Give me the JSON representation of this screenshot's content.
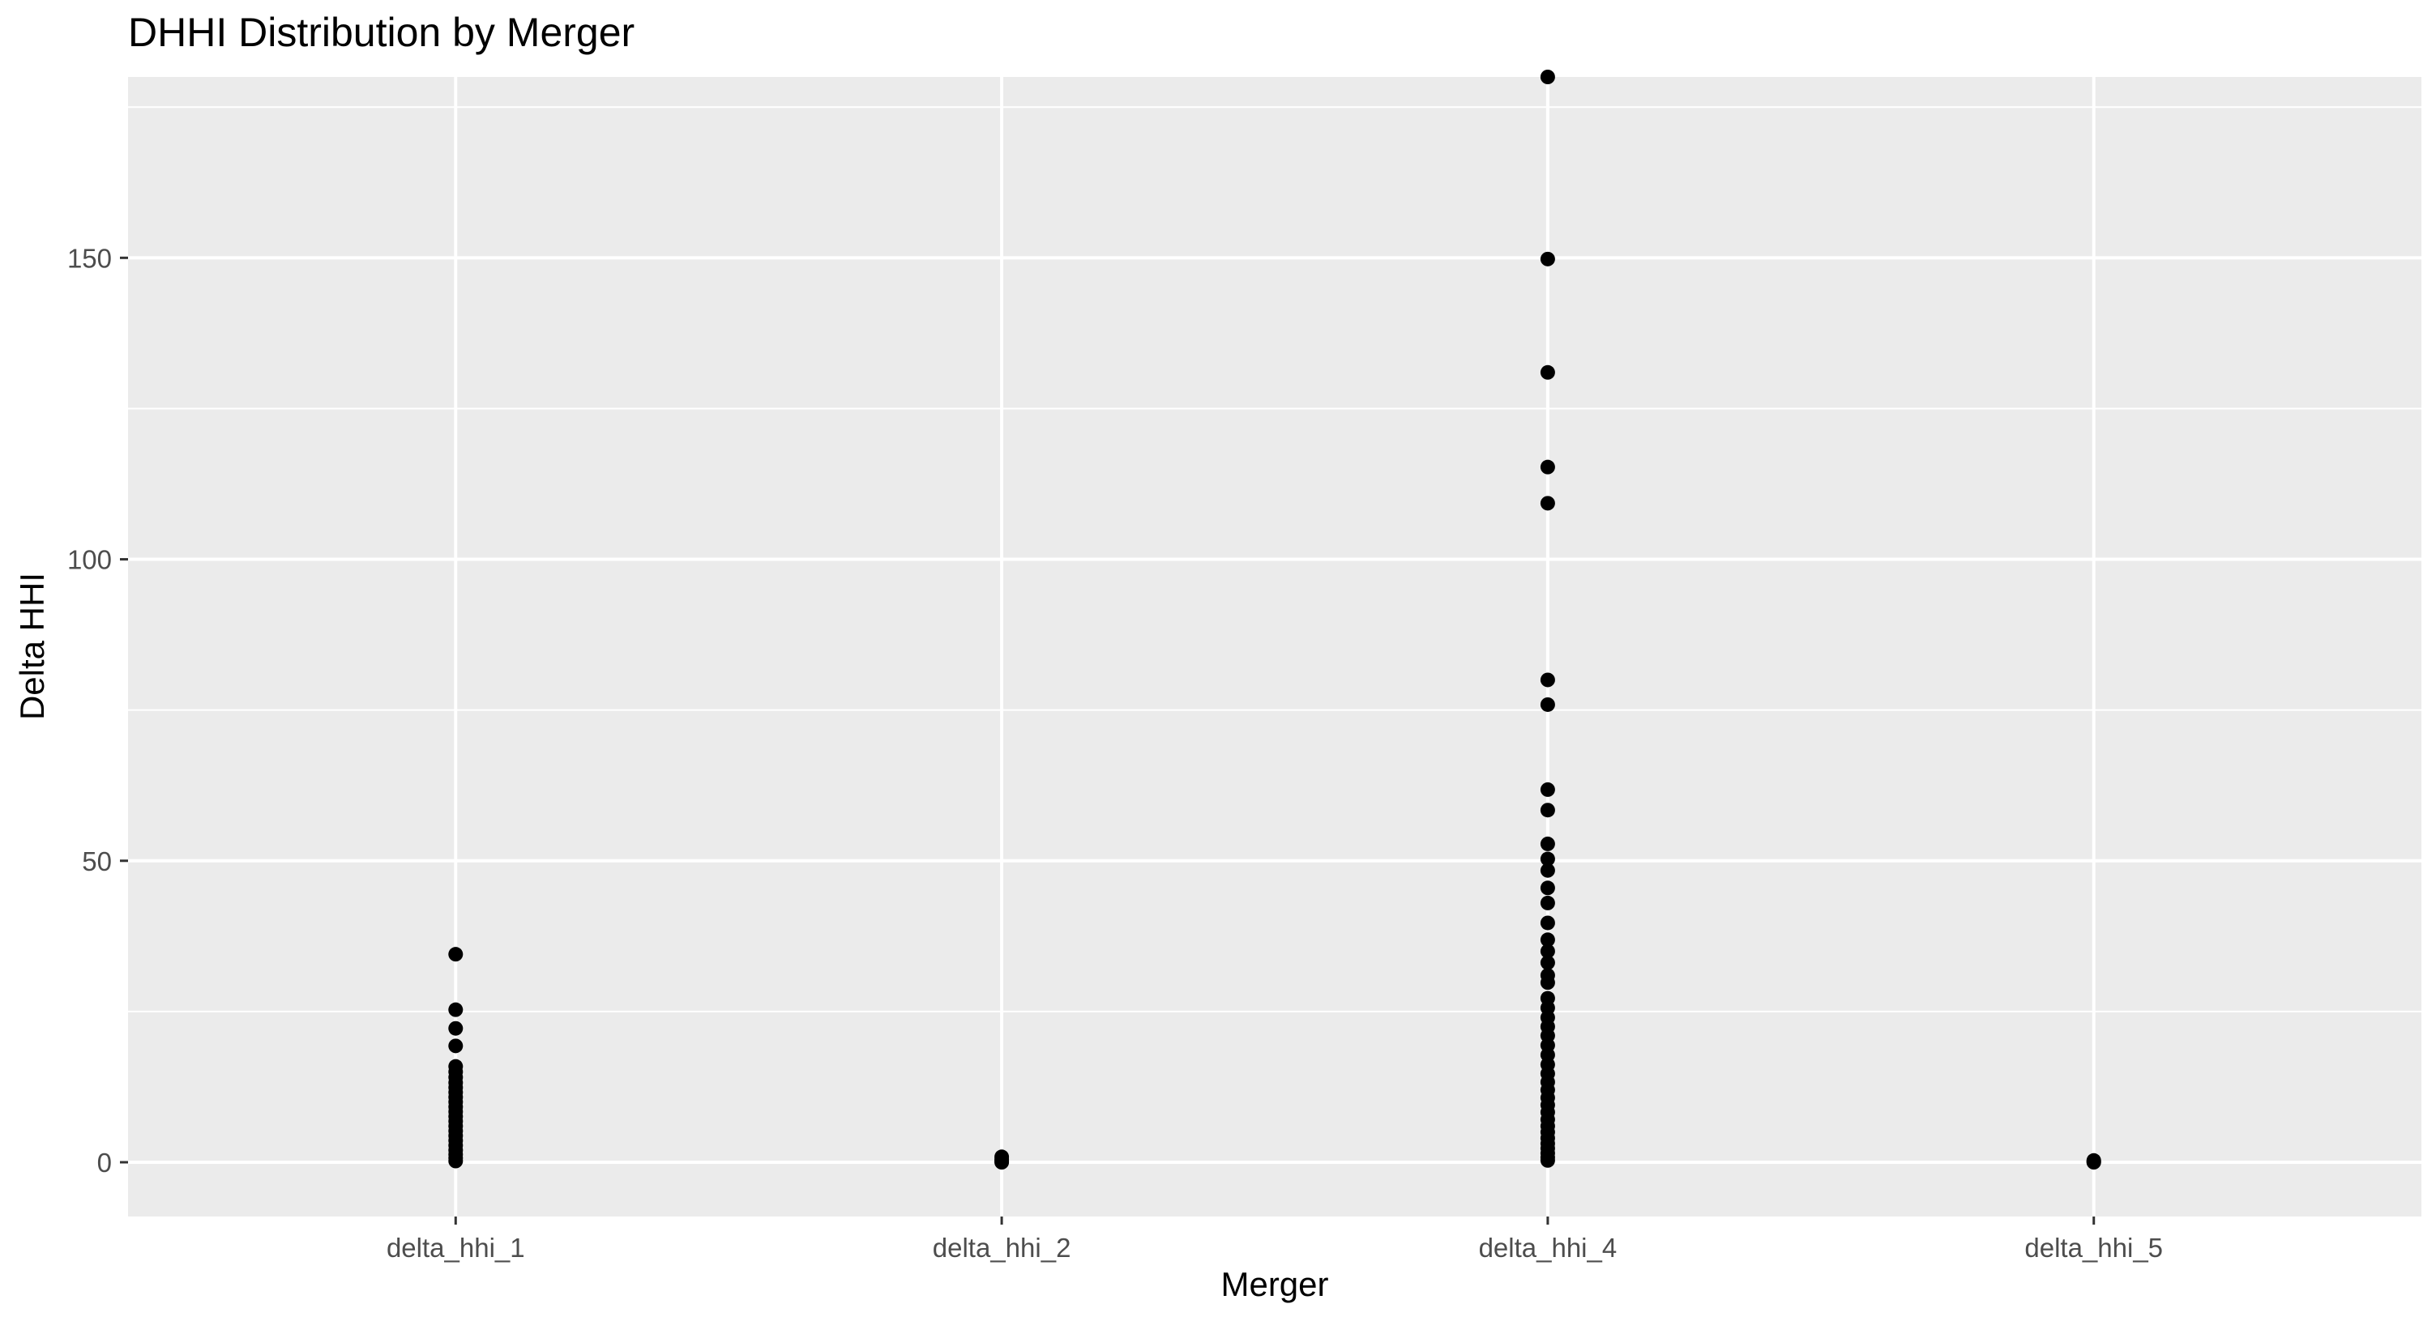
{
  "chart_data": {
    "type": "scatter",
    "title": "DHHI Distribution by Merger",
    "xlabel": "Merger",
    "ylabel": "Delta HHI",
    "categories": [
      "delta_hhi_1",
      "delta_hhi_2",
      "delta_hhi_4",
      "delta_hhi_5"
    ],
    "yticks": [
      0,
      50,
      100,
      150
    ],
    "ylim": [
      -9,
      180
    ],
    "grid": true,
    "legend": "none",
    "colors": {
      "panel": "#ebebeb",
      "grid": "#ffffff",
      "point": "#000000",
      "tick_text": "#4d4d4d"
    },
    "series": [
      {
        "values": [
          [
            0,
            34.5
          ],
          [
            0,
            25.3
          ],
          [
            0,
            22.2
          ],
          [
            0,
            19.3
          ],
          [
            0,
            15.9
          ],
          [
            0,
            15.0
          ],
          [
            0,
            14.1
          ],
          [
            0,
            13.2
          ],
          [
            0,
            12.4
          ],
          [
            0,
            11.6
          ],
          [
            0,
            10.8
          ],
          [
            0,
            10.0
          ],
          [
            0,
            9.2
          ],
          [
            0,
            8.4
          ],
          [
            0,
            7.6
          ],
          [
            0,
            6.8
          ],
          [
            0,
            6.0
          ],
          [
            0,
            5.2
          ],
          [
            0,
            4.4
          ],
          [
            0,
            3.6
          ],
          [
            0,
            2.8
          ],
          [
            0,
            2.0
          ],
          [
            0,
            1.3
          ],
          [
            0,
            0.7
          ],
          [
            0,
            0.2
          ],
          [
            1,
            0.9
          ],
          [
            1,
            0.5
          ],
          [
            1,
            0.2
          ],
          [
            1,
            0.0
          ],
          [
            2,
            180.0
          ],
          [
            2,
            149.8
          ],
          [
            2,
            131.0
          ],
          [
            2,
            115.3
          ],
          [
            2,
            109.3
          ],
          [
            2,
            80.0
          ],
          [
            2,
            75.9
          ],
          [
            2,
            61.8
          ],
          [
            2,
            58.4
          ],
          [
            2,
            52.8
          ],
          [
            2,
            50.3
          ],
          [
            2,
            48.4
          ],
          [
            2,
            45.5
          ],
          [
            2,
            43.0
          ],
          [
            2,
            39.7
          ],
          [
            2,
            36.9
          ],
          [
            2,
            35.0
          ],
          [
            2,
            33.1
          ],
          [
            2,
            31.0
          ],
          [
            2,
            29.8
          ],
          [
            2,
            27.2
          ],
          [
            2,
            25.6
          ],
          [
            2,
            24.0
          ],
          [
            2,
            22.5
          ],
          [
            2,
            21.0
          ],
          [
            2,
            19.4
          ],
          [
            2,
            17.8
          ],
          [
            2,
            16.2
          ],
          [
            2,
            14.7
          ],
          [
            2,
            13.3
          ],
          [
            2,
            12.0
          ],
          [
            2,
            10.7
          ],
          [
            2,
            9.5
          ],
          [
            2,
            8.3
          ],
          [
            2,
            7.1
          ],
          [
            2,
            6.0
          ],
          [
            2,
            5.0
          ],
          [
            2,
            4.0
          ],
          [
            2,
            3.1
          ],
          [
            2,
            2.3
          ],
          [
            2,
            1.5
          ],
          [
            2,
            0.8
          ],
          [
            2,
            0.3
          ],
          [
            3,
            0.3
          ],
          [
            3,
            0.1
          ],
          [
            3,
            0.0
          ]
        ]
      }
    ]
  }
}
